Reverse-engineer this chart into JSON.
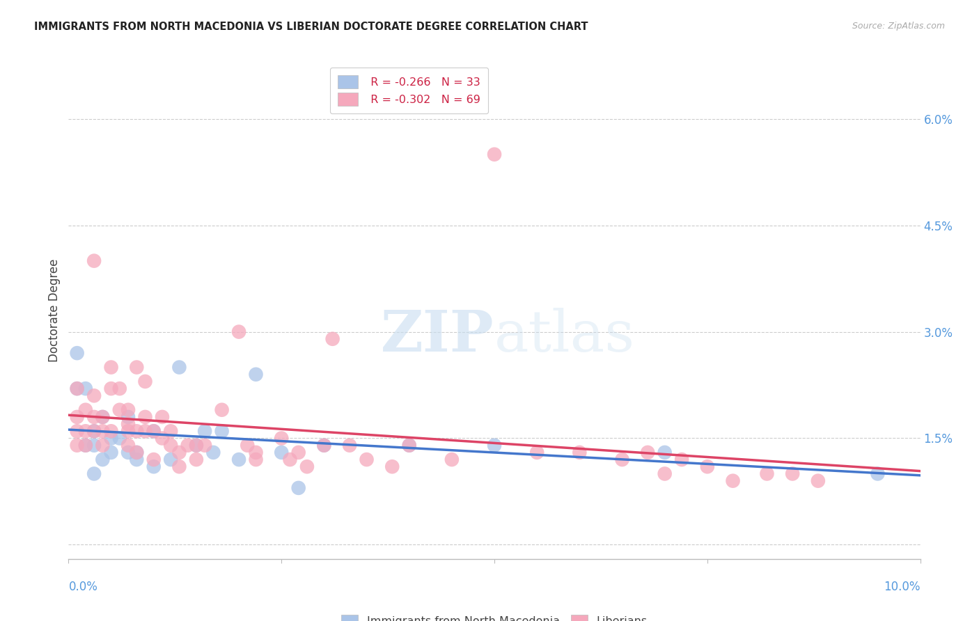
{
  "title": "IMMIGRANTS FROM NORTH MACEDONIA VS LIBERIAN DOCTORATE DEGREE CORRELATION CHART",
  "source": "Source: ZipAtlas.com",
  "ylabel": "Doctorate Degree",
  "ytick_values": [
    0.0,
    0.015,
    0.03,
    0.045,
    0.06
  ],
  "ytick_labels": [
    "",
    "1.5%",
    "3.0%",
    "4.5%",
    "6.0%"
  ],
  "xlim": [
    0.0,
    0.1
  ],
  "ylim": [
    -0.002,
    0.068
  ],
  "legend_blue_r": "-0.266",
  "legend_blue_n": "33",
  "legend_pink_r": "-0.302",
  "legend_pink_n": "69",
  "blue_label": "Immigrants from North Macedonia",
  "pink_label": "Liberians",
  "blue_color": "#aac4e8",
  "pink_color": "#f5a8bc",
  "blue_line_color": "#4477cc",
  "pink_line_color": "#dd4466",
  "legend_text_color": "#cc2244",
  "right_axis_color": "#5599dd",
  "title_color": "#222222",
  "source_color": "#aaaaaa",
  "watermark_color": "#c8ddf0",
  "blue_x": [
    0.001,
    0.001,
    0.002,
    0.002,
    0.003,
    0.003,
    0.003,
    0.004,
    0.004,
    0.005,
    0.005,
    0.006,
    0.007,
    0.007,
    0.008,
    0.008,
    0.01,
    0.01,
    0.012,
    0.013,
    0.015,
    0.016,
    0.017,
    0.018,
    0.02,
    0.022,
    0.025,
    0.027,
    0.03,
    0.04,
    0.05,
    0.07,
    0.095
  ],
  "blue_y": [
    0.027,
    0.022,
    0.022,
    0.014,
    0.016,
    0.014,
    0.01,
    0.018,
    0.012,
    0.015,
    0.013,
    0.015,
    0.018,
    0.013,
    0.012,
    0.013,
    0.016,
    0.011,
    0.012,
    0.025,
    0.014,
    0.016,
    0.013,
    0.016,
    0.012,
    0.024,
    0.013,
    0.008,
    0.014,
    0.014,
    0.014,
    0.013,
    0.01
  ],
  "pink_x": [
    0.001,
    0.001,
    0.001,
    0.001,
    0.002,
    0.002,
    0.002,
    0.003,
    0.003,
    0.003,
    0.003,
    0.004,
    0.004,
    0.004,
    0.005,
    0.005,
    0.005,
    0.006,
    0.006,
    0.007,
    0.007,
    0.007,
    0.007,
    0.008,
    0.008,
    0.008,
    0.009,
    0.009,
    0.009,
    0.01,
    0.01,
    0.011,
    0.011,
    0.012,
    0.012,
    0.013,
    0.013,
    0.014,
    0.015,
    0.015,
    0.016,
    0.018,
    0.02,
    0.021,
    0.022,
    0.022,
    0.025,
    0.026,
    0.027,
    0.028,
    0.03,
    0.031,
    0.033,
    0.035,
    0.038,
    0.04,
    0.045,
    0.05,
    0.055,
    0.06,
    0.065,
    0.068,
    0.07,
    0.072,
    0.075,
    0.078,
    0.082,
    0.085,
    0.088
  ],
  "pink_y": [
    0.022,
    0.018,
    0.016,
    0.014,
    0.019,
    0.016,
    0.014,
    0.04,
    0.021,
    0.018,
    0.016,
    0.018,
    0.016,
    0.014,
    0.025,
    0.022,
    0.016,
    0.022,
    0.019,
    0.019,
    0.017,
    0.016,
    0.014,
    0.025,
    0.016,
    0.013,
    0.023,
    0.018,
    0.016,
    0.016,
    0.012,
    0.018,
    0.015,
    0.016,
    0.014,
    0.013,
    0.011,
    0.014,
    0.014,
    0.012,
    0.014,
    0.019,
    0.03,
    0.014,
    0.013,
    0.012,
    0.015,
    0.012,
    0.013,
    0.011,
    0.014,
    0.029,
    0.014,
    0.012,
    0.011,
    0.014,
    0.012,
    0.055,
    0.013,
    0.013,
    0.012,
    0.013,
    0.01,
    0.012,
    0.011,
    0.009,
    0.01,
    0.01,
    0.009
  ]
}
